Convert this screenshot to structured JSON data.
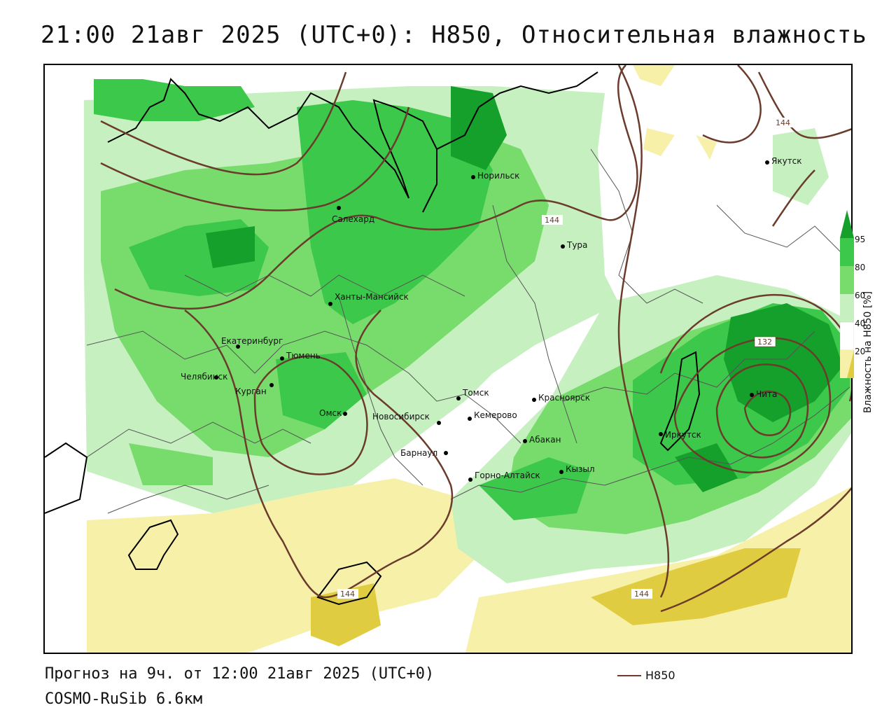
{
  "title": "21:00 21авг 2025 (UTC+0): H850, Относительная влажность",
  "footer": {
    "forecast": "Прогноз на 9ч. от 12:00 21авг 2025 (UTC+0)",
    "model": "COSMO-RuSib 6.6км",
    "contour_legend_label": "H850"
  },
  "legend": {
    "title": "Влажность на H850 [%]",
    "ticks": [
      "95",
      "80",
      "60",
      "40",
      "20"
    ],
    "colors": {
      "dry_dark": "#e0cc40",
      "dry": "#f7f0a8",
      "neutral": "#ffffff",
      "moist_light": "#c6f0c0",
      "moist": "#78dc6c",
      "moist_mid": "#3cc84a",
      "moist_dark": "#14a02a"
    }
  },
  "contour_labels": [
    "144",
    "144",
    "144",
    "144",
    "132"
  ],
  "cities": [
    {
      "name": "Якутск"
    },
    {
      "name": "Норильск"
    },
    {
      "name": "Салехард"
    },
    {
      "name": "Тура"
    },
    {
      "name": "Ханты-Мансийск"
    },
    {
      "name": "Екатеринбург"
    },
    {
      "name": "Тюмень"
    },
    {
      "name": "Челябинск"
    },
    {
      "name": "Курган"
    },
    {
      "name": "Омск"
    },
    {
      "name": "Новосибирск"
    },
    {
      "name": "Томск"
    },
    {
      "name": "Кемерово"
    },
    {
      "name": "Красноярск"
    },
    {
      "name": "Барнаул"
    },
    {
      "name": "Абакан"
    },
    {
      "name": "Горно-Алтайск"
    },
    {
      "name": "Кызыл"
    },
    {
      "name": "Иркутск"
    },
    {
      "name": "Чита"
    }
  ]
}
